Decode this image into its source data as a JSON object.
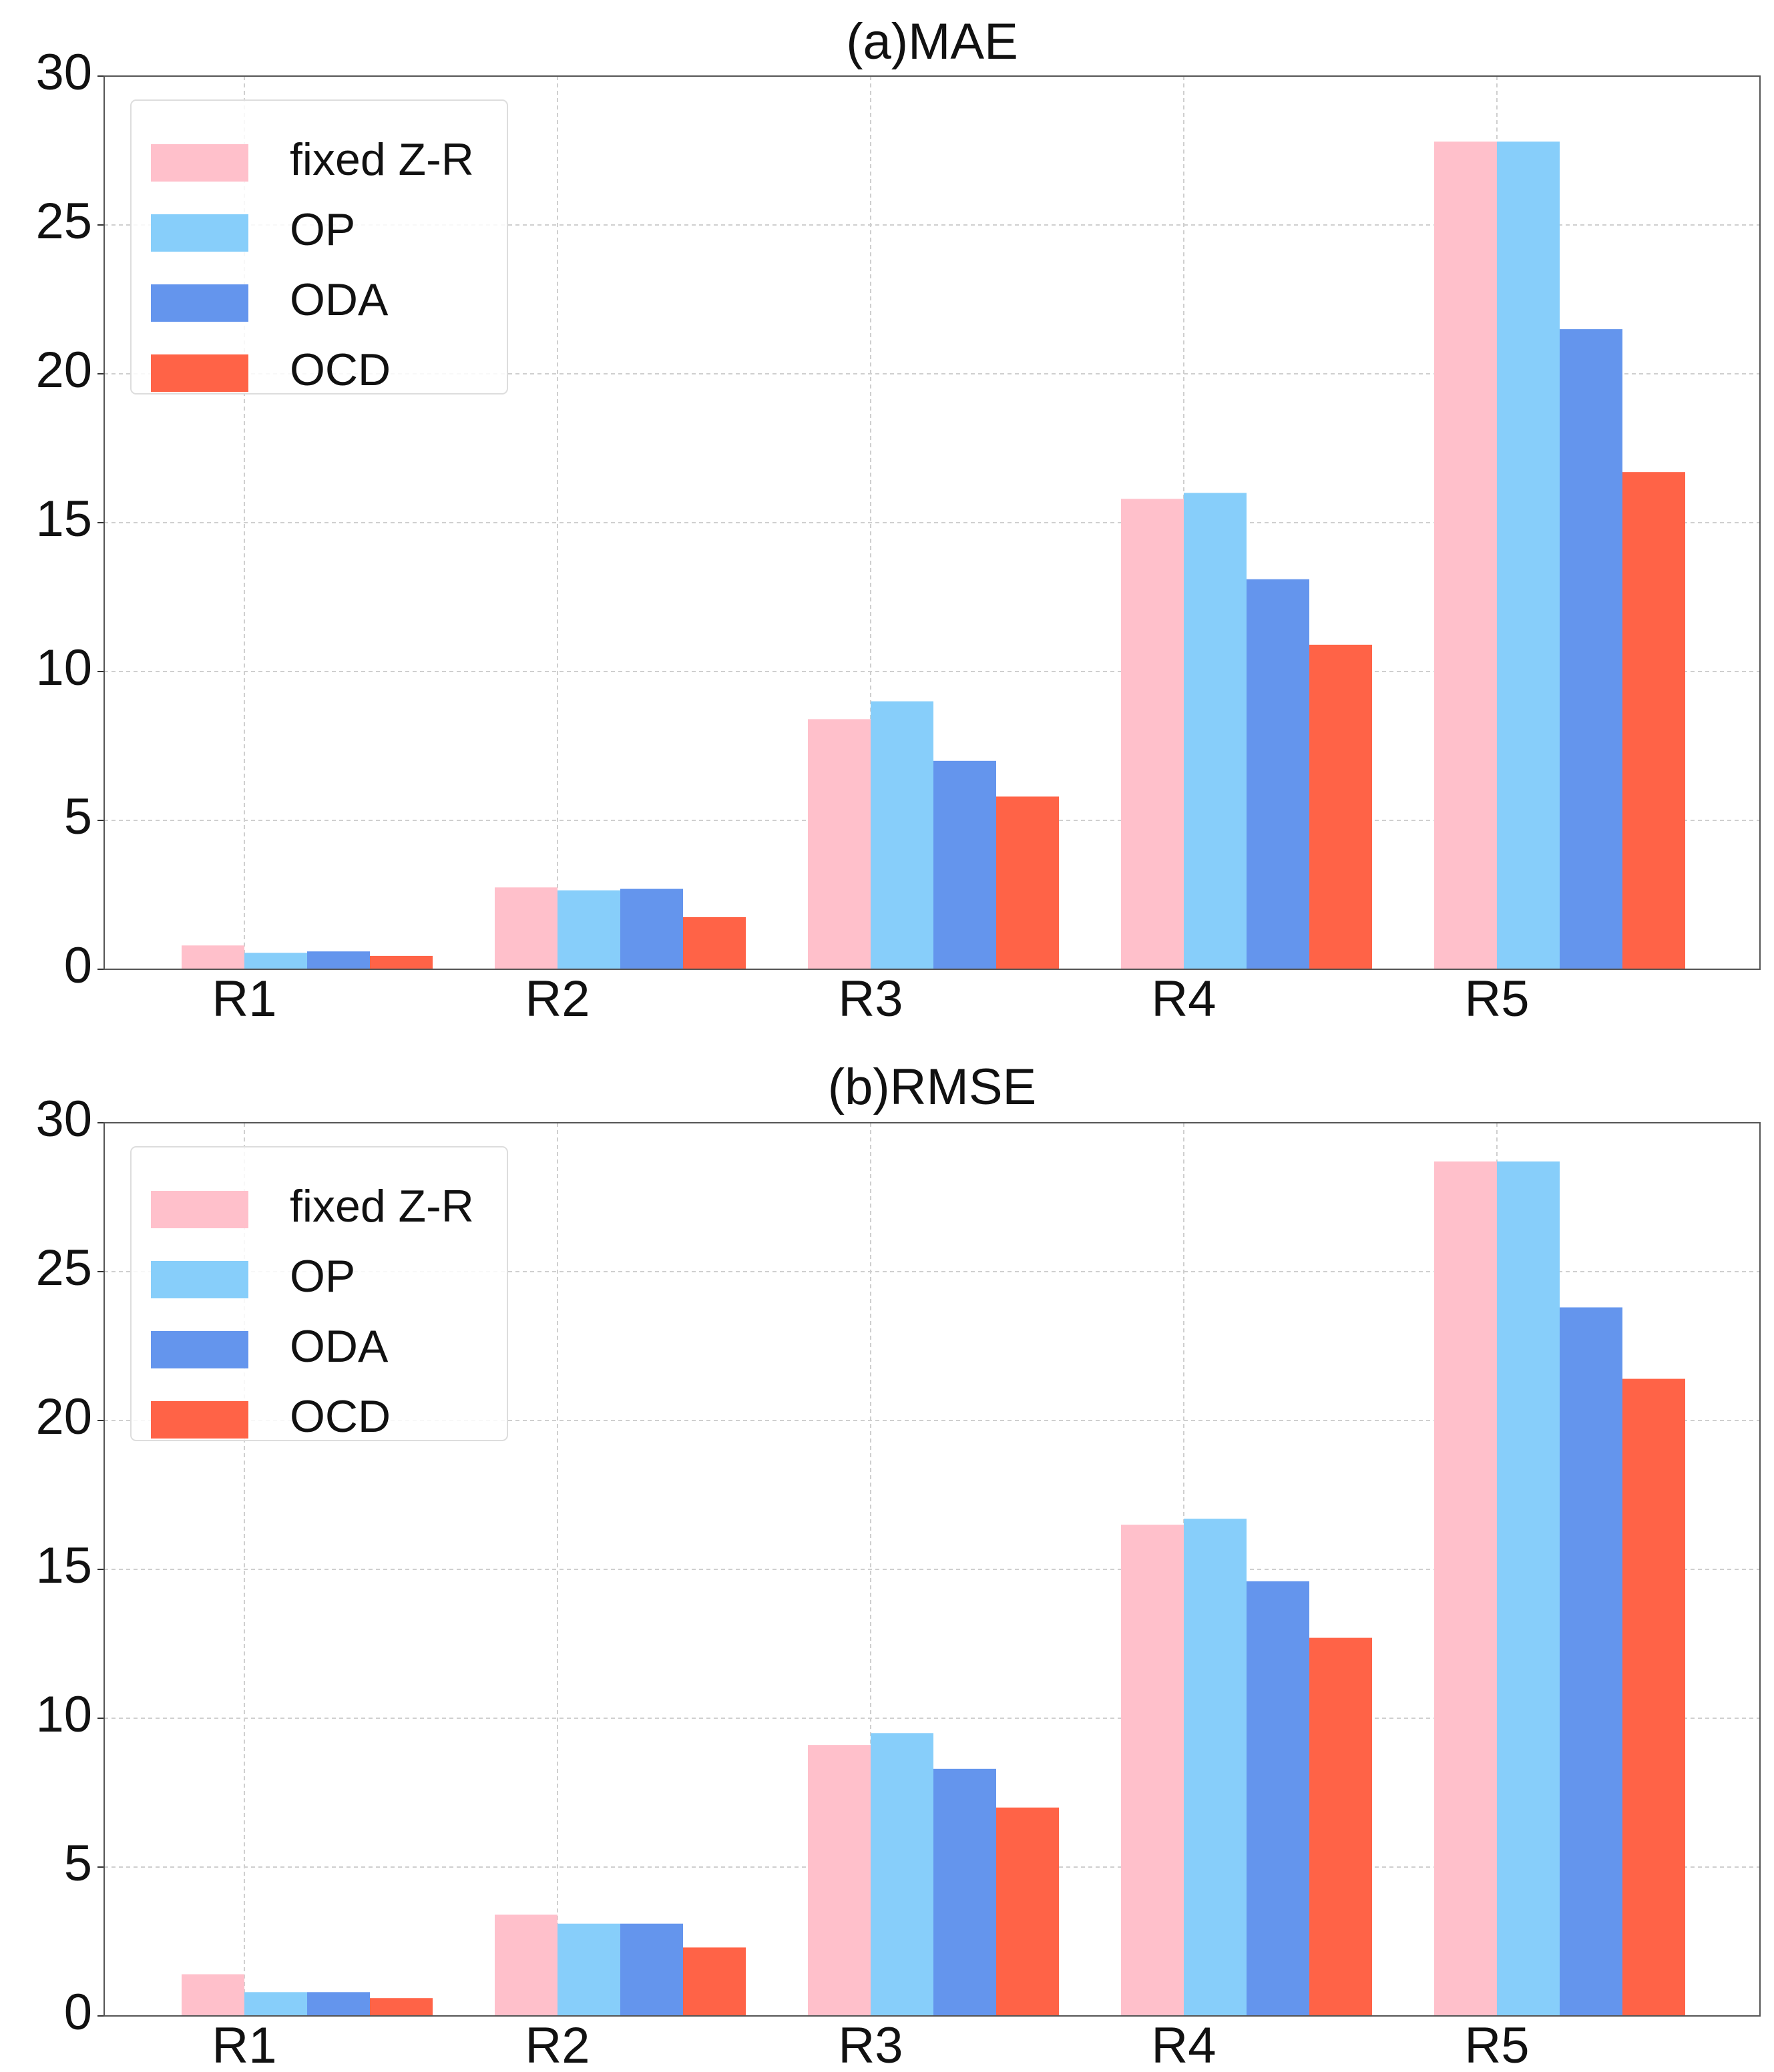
{
  "chart_data": [
    {
      "type": "bar",
      "title": "(a)MAE",
      "categories": [
        "R1",
        "R2",
        "R3",
        "R4",
        "R5"
      ],
      "series": [
        {
          "name": "fixed Z-R",
          "color": "#ffc0cb",
          "values": [
            0.8,
            2.75,
            8.4,
            15.8,
            27.8
          ]
        },
        {
          "name": "OP",
          "color": "#87cefa",
          "values": [
            0.55,
            2.65,
            9.0,
            16.0,
            27.8
          ]
        },
        {
          "name": "ODA",
          "color": "#6495ed",
          "values": [
            0.6,
            2.7,
            7.0,
            13.1,
            21.5
          ]
        },
        {
          "name": "OCD",
          "color": "#ff6347",
          "values": [
            0.45,
            1.75,
            5.8,
            10.9,
            16.7
          ]
        }
      ],
      "ylim": [
        0,
        30
      ],
      "yticks": [
        0,
        5,
        10,
        15,
        20,
        25,
        30
      ],
      "grid": true,
      "legend": "upper left"
    },
    {
      "type": "bar",
      "title": "(b)RMSE",
      "categories": [
        "R1",
        "R2",
        "R3",
        "R4",
        "R5"
      ],
      "series": [
        {
          "name": "fixed Z-R",
          "color": "#ffc0cb",
          "values": [
            1.4,
            3.4,
            9.1,
            16.5,
            28.7
          ]
        },
        {
          "name": "OP",
          "color": "#87cefa",
          "values": [
            0.8,
            3.1,
            9.5,
            16.7,
            28.7
          ]
        },
        {
          "name": "ODA",
          "color": "#6495ed",
          "values": [
            0.8,
            3.1,
            8.3,
            14.6,
            23.8
          ]
        },
        {
          "name": "OCD",
          "color": "#ff6347",
          "values": [
            0.6,
            2.3,
            7.0,
            12.7,
            21.4
          ]
        }
      ],
      "ylim": [
        0,
        30
      ],
      "yticks": [
        0,
        5,
        10,
        15,
        20,
        25,
        30
      ],
      "grid": true,
      "legend": "upper left"
    }
  ]
}
